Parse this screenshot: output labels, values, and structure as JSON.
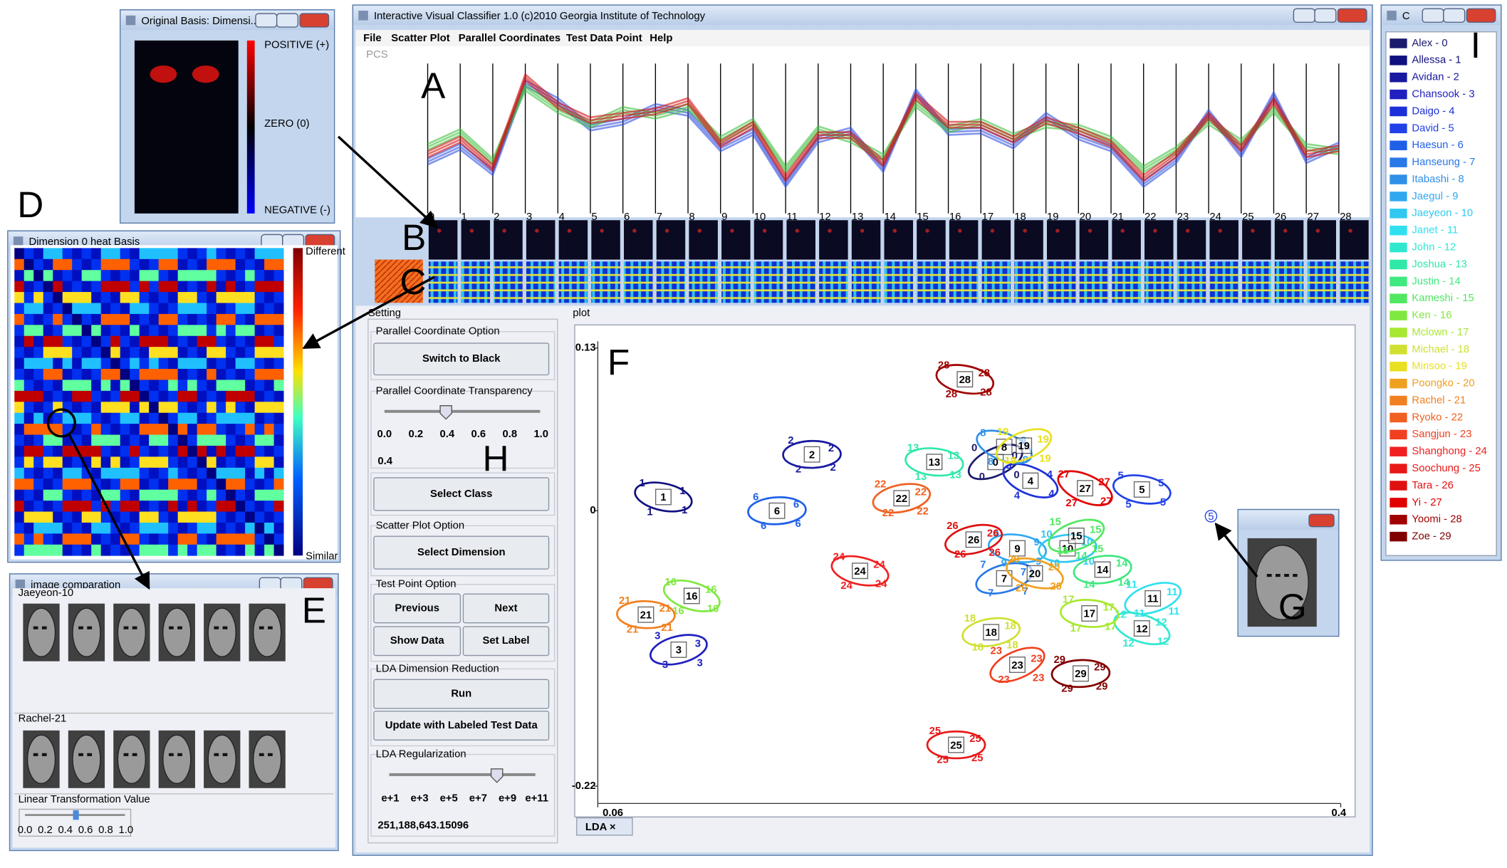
{
  "main_window": {
    "title": "Interactive Visual Classifier 1.0 (c)2010 Georgia Institute of Technology",
    "menu": [
      "File",
      "Scatter Plot",
      "Parallel Coordinates",
      "Test Data Point",
      "Help"
    ],
    "pcs_label": "PCS",
    "plot_label": "plot",
    "tab": "LDA ×"
  },
  "annotations": [
    "A",
    "B",
    "C",
    "D",
    "E",
    "F",
    "G",
    "H",
    "I"
  ],
  "chart_data": [
    {
      "type": "parallel",
      "categories": [
        "0",
        "1",
        "2",
        "3",
        "4",
        "5",
        "6",
        "7",
        "8",
        "9",
        "10",
        "11",
        "12",
        "13",
        "14",
        "15",
        "16",
        "17",
        "18",
        "19",
        "20",
        "21",
        "22",
        "23",
        "24",
        "25",
        "26",
        "27",
        "28"
      ],
      "ylim": [
        0,
        1
      ],
      "series": [
        {
          "color": "#3050e0",
          "values": [
            0.35,
            0.45,
            0.28,
            0.88,
            0.76,
            0.58,
            0.62,
            0.72,
            0.68,
            0.44,
            0.55,
            0.2,
            0.5,
            0.56,
            0.3,
            0.82,
            0.55,
            0.56,
            0.46,
            0.66,
            0.52,
            0.44,
            0.2,
            0.36,
            0.68,
            0.4,
            0.8,
            0.36,
            0.46
          ]
        },
        {
          "color": "#40c040",
          "values": [
            0.45,
            0.55,
            0.35,
            0.85,
            0.7,
            0.6,
            0.7,
            0.66,
            0.72,
            0.5,
            0.62,
            0.3,
            0.57,
            0.5,
            0.38,
            0.74,
            0.57,
            0.62,
            0.52,
            0.6,
            0.58,
            0.5,
            0.3,
            0.43,
            0.62,
            0.48,
            0.7,
            0.45,
            0.42
          ]
        },
        {
          "color": "#d01010",
          "values": [
            0.4,
            0.5,
            0.31,
            0.92,
            0.73,
            0.63,
            0.66,
            0.69,
            0.76,
            0.47,
            0.6,
            0.24,
            0.53,
            0.53,
            0.34,
            0.79,
            0.6,
            0.6,
            0.5,
            0.63,
            0.56,
            0.47,
            0.24,
            0.4,
            0.66,
            0.44,
            0.76,
            0.4,
            0.44
          ]
        }
      ]
    },
    {
      "type": "scatter",
      "xlim": [
        0.06,
        0.4
      ],
      "ylim": [
        -0.22,
        0.13
      ],
      "xticks": [
        0.06,
        0.4
      ],
      "yticks": [
        -0.22,
        0,
        0.13
      ],
      "series": [
        {
          "name": "Alex - 0",
          "label": "0",
          "color": "#1a1a6e",
          "x": 0.242,
          "y": 0.039
        },
        {
          "name": "Allessa - 1",
          "label": "1",
          "color": "#101080",
          "x": 0.09,
          "y": 0.011
        },
        {
          "name": "Avidan - 2",
          "label": "2",
          "color": "#1818a0",
          "x": 0.158,
          "y": 0.045
        },
        {
          "name": "Chansook - 3",
          "label": "3",
          "color": "#2020c0",
          "x": 0.097,
          "y": -0.111
        },
        {
          "name": "Daigo - 4",
          "label": "4",
          "color": "#1c2fd8",
          "x": 0.258,
          "y": 0.024
        },
        {
          "name": "David - 5",
          "label": "5",
          "color": "#2040e8",
          "x": 0.309,
          "y": 0.017
        },
        {
          "name": "Haesun - 6",
          "label": "6",
          "color": "#2060e8",
          "x": 0.142,
          "y": 0.0
        },
        {
          "name": "Hanseung - 7",
          "label": "7",
          "color": "#2878e8",
          "x": 0.246,
          "y": -0.054
        },
        {
          "name": "Itabashi - 8",
          "label": "8",
          "color": "#3090e8",
          "x": 0.246,
          "y": 0.051
        },
        {
          "name": "Jaegul - 9",
          "label": "9",
          "color": "#30a8f0",
          "x": 0.252,
          "y": -0.03
        },
        {
          "name": "Jaeyeon - 10",
          "label": "10",
          "color": "#30c8f0",
          "x": 0.275,
          "y": -0.03
        },
        {
          "name": "Janet - 11",
          "label": "11",
          "color": "#30e0f0",
          "x": 0.314,
          "y": -0.07
        },
        {
          "name": "John - 12",
          "label": "12",
          "color": "#30e8d0",
          "x": 0.309,
          "y": -0.094
        },
        {
          "name": "Joshua - 13",
          "label": "13",
          "color": "#30e8a8",
          "x": 0.214,
          "y": 0.039
        },
        {
          "name": "Justin - 14",
          "label": "14",
          "color": "#40e880",
          "x": 0.291,
          "y": -0.047
        },
        {
          "name": "Kameshi - 15",
          "label": "15",
          "color": "#50e860",
          "x": 0.279,
          "y": -0.02
        },
        {
          "name": "Ken - 16",
          "label": "16",
          "color": "#80e840",
          "x": 0.103,
          "y": -0.068
        },
        {
          "name": "Mclown - 17",
          "label": "17",
          "color": "#a8e830",
          "x": 0.285,
          "y": -0.082
        },
        {
          "name": "Michael - 18",
          "label": "18",
          "color": "#d0e030",
          "x": 0.24,
          "y": -0.097
        },
        {
          "name": "Minsoo - 19",
          "label": "19",
          "color": "#e8e020",
          "x": 0.255,
          "y": 0.052
        },
        {
          "name": "Poongko - 20",
          "label": "20",
          "color": "#f0a020",
          "x": 0.26,
          "y": -0.05
        },
        {
          "name": "Rachel - 21",
          "label": "21",
          "color": "#f08020",
          "x": 0.082,
          "y": -0.083
        },
        {
          "name": "Ryoko - 22",
          "label": "22",
          "color": "#f06020",
          "x": 0.199,
          "y": 0.01
        },
        {
          "name": "Sangjun - 23",
          "label": "23",
          "color": "#f04020",
          "x": 0.252,
          "y": -0.123
        },
        {
          "name": "Shanghong - 24",
          "label": "24",
          "color": "#f02020",
          "x": 0.18,
          "y": -0.048
        },
        {
          "name": "Soochung - 25",
          "label": "25",
          "color": "#e81818",
          "x": 0.224,
          "y": -0.187
        },
        {
          "name": "Tara - 26",
          "label": "26",
          "color": "#e01010",
          "x": 0.232,
          "y": -0.023
        },
        {
          "name": "Yi - 27",
          "label": "27",
          "color": "#e00000",
          "x": 0.283,
          "y": 0.018
        },
        {
          "name": "Yoomi - 28",
          "label": "28",
          "color": "#a00000",
          "x": 0.228,
          "y": 0.105
        },
        {
          "name": "Zoe - 29",
          "label": "29",
          "color": "#800000",
          "x": 0.281,
          "y": -0.13
        }
      ]
    }
  ],
  "settings": {
    "title": "Setting",
    "pc_option": "Parallel Coordinate Option",
    "switch": "Switch to Black",
    "transparency": "Parallel Coordinate Transparency",
    "transparency_ticks": [
      "0.0",
      "0.2",
      "0.4",
      "0.6",
      "0.8",
      "1.0"
    ],
    "transparency_value": "0.4",
    "select_class": "Select Class",
    "scatter_option": "Scatter Plot Option",
    "select_dimension": "Select Dimension",
    "test_option": "Test Point Option",
    "previous": "Previous",
    "next": "Next",
    "show_data": "Show Data",
    "set_label": "Set Label",
    "lda": "LDA Dimension Reduction",
    "run": "Run",
    "update": "Update with Labeled Test Data",
    "regularization": "LDA Regularization",
    "regularization_ticks": [
      "e+1",
      "e+3",
      "e+5",
      "e+7",
      "e+9",
      "e+11"
    ],
    "regularization_value": "251,188,643.15096"
  },
  "legend_window": {
    "title": "C"
  },
  "basis_window": {
    "title": "Original Basis: Dimensi...",
    "positive": "POSITIVE (+)",
    "zero": "ZERO (0)",
    "negative": "NEGATIVE (-)"
  },
  "heat_window": {
    "title": "Dimension 0 heat Basis",
    "different": "Different",
    "similar": "Similar"
  },
  "comparison_window": {
    "title": "image comparation",
    "first": "Jaeyeon-10",
    "second": "Rachel-21",
    "slider": "Linear Transformation Value",
    "slider_ticks": [
      "0.0",
      "0.2",
      "0.4",
      "0.6",
      "0.8",
      "1.0"
    ]
  }
}
